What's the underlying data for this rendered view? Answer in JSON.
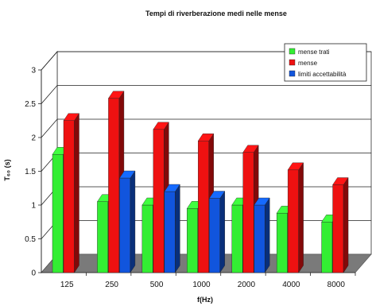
{
  "chart_data": {
    "type": "bar",
    "title": "Tempi di riverberazione medi nelle mense",
    "xlabel": "f(Hz)",
    "ylabel": "T₆₀ (s)",
    "ylim": [
      0,
      3
    ],
    "yticks": [
      "0",
      "0.5",
      "1",
      "1.5",
      "2",
      "2.5",
      "3"
    ],
    "categories": [
      "125",
      "250",
      "500",
      "1000",
      "2000",
      "4000",
      "8000"
    ],
    "series": [
      {
        "name": "mense trati",
        "color": "#33ee33",
        "values": [
          1.75,
          1.05,
          1.0,
          0.95,
          1.0,
          0.88,
          0.75
        ]
      },
      {
        "name": "mense",
        "color": "#ee1111",
        "values": [
          2.25,
          2.58,
          2.12,
          1.95,
          1.78,
          1.52,
          1.3
        ]
      },
      {
        "name": "limiti accettabilità",
        "color": "#1155dd",
        "values": [
          null,
          1.4,
          1.2,
          1.1,
          1.0,
          null,
          null
        ]
      }
    ],
    "legend": "top-right",
    "grid": true
  }
}
